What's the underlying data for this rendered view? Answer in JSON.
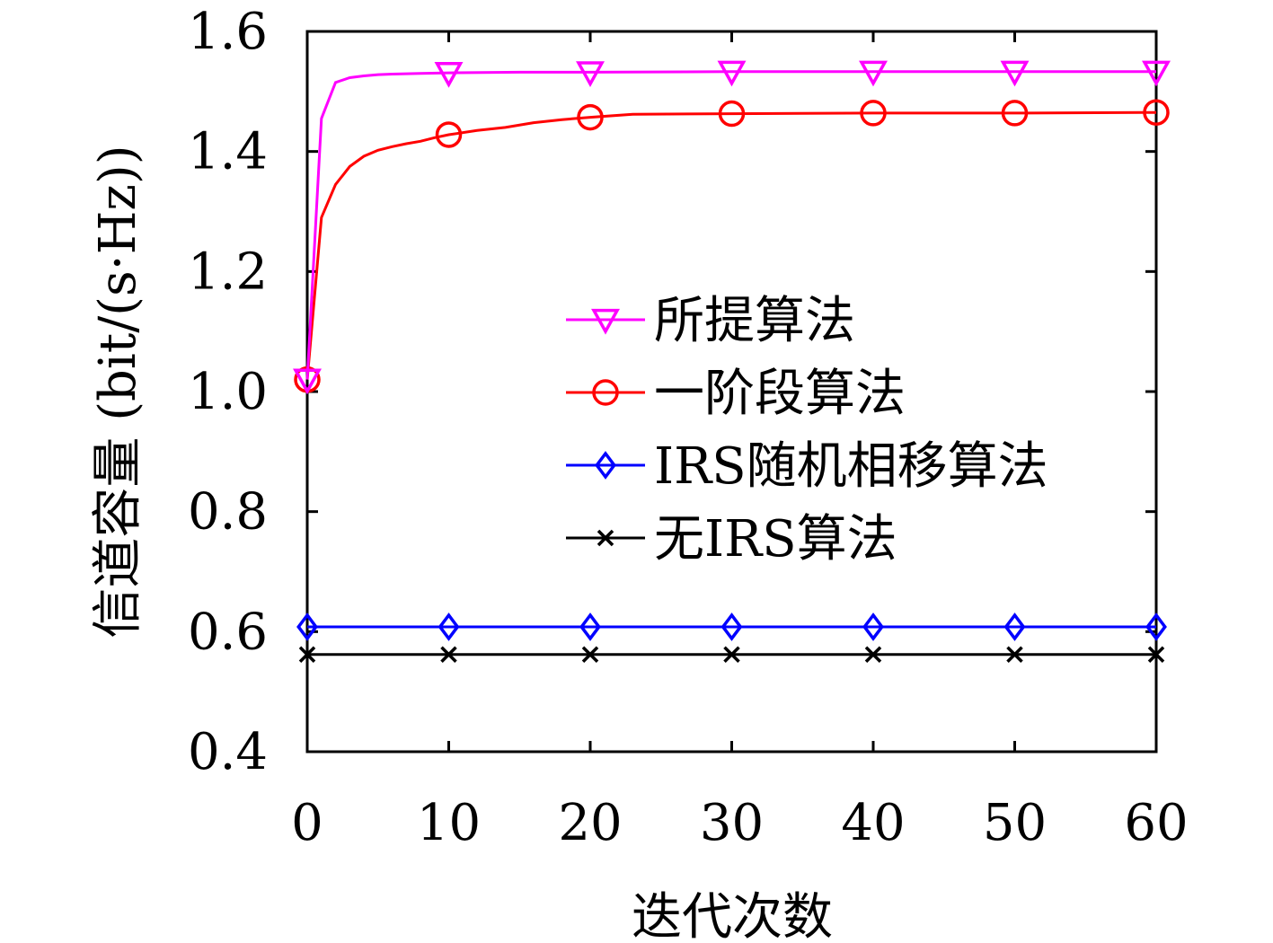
{
  "chart_data": {
    "type": "line",
    "xlabel": "迭代次数",
    "ylabel": "信道容量 (bit/(s·Hz))",
    "xlim": [
      0,
      60
    ],
    "ylim": [
      0.4,
      1.6
    ],
    "xticks": [
      "0",
      "10",
      "20",
      "30",
      "40",
      "50",
      "60"
    ],
    "yticks": [
      "0.4",
      "0.6",
      "0.8",
      "1.0",
      "1.2",
      "1.4",
      "1.6"
    ],
    "grid": false,
    "legend_position": "center-right",
    "series": [
      {
        "name": "所提算法",
        "color": "#ff00ff",
        "marker": "triangle-down",
        "x": [
          0,
          1,
          2,
          3,
          4,
          5,
          6,
          8,
          10,
          15,
          20,
          30,
          40,
          50,
          60
        ],
        "y": [
          1.02,
          1.455,
          1.515,
          1.523,
          1.526,
          1.528,
          1.529,
          1.53,
          1.531,
          1.532,
          1.532,
          1.533,
          1.533,
          1.533,
          1.533
        ],
        "marker_x": [
          0,
          10,
          20,
          30,
          40,
          50,
          60
        ]
      },
      {
        "name": "一阶段算法",
        "color": "#ff0000",
        "marker": "circle",
        "x": [
          0,
          1,
          2,
          3,
          4,
          5,
          6,
          7,
          8,
          9,
          10,
          12,
          14,
          16,
          18,
          20,
          23,
          30,
          40,
          50,
          60
        ],
        "y": [
          1.02,
          1.29,
          1.345,
          1.375,
          1.392,
          1.402,
          1.408,
          1.413,
          1.417,
          1.423,
          1.428,
          1.435,
          1.44,
          1.448,
          1.453,
          1.457,
          1.462,
          1.463,
          1.464,
          1.464,
          1.465
        ],
        "marker_x": [
          0,
          10,
          20,
          30,
          40,
          50,
          60
        ]
      },
      {
        "name": "IRS随机相移算法",
        "color": "#0000ff",
        "marker": "diamond",
        "x": [
          0,
          60
        ],
        "y": [
          0.608,
          0.608
        ],
        "marker_x": [
          0,
          10,
          20,
          30,
          40,
          50,
          60
        ]
      },
      {
        "name": "无IRS算法",
        "color": "#000000",
        "marker": "x",
        "x": [
          0,
          60
        ],
        "y": [
          0.562,
          0.562
        ],
        "marker_x": [
          0,
          10,
          20,
          30,
          40,
          50,
          60
        ]
      }
    ]
  }
}
